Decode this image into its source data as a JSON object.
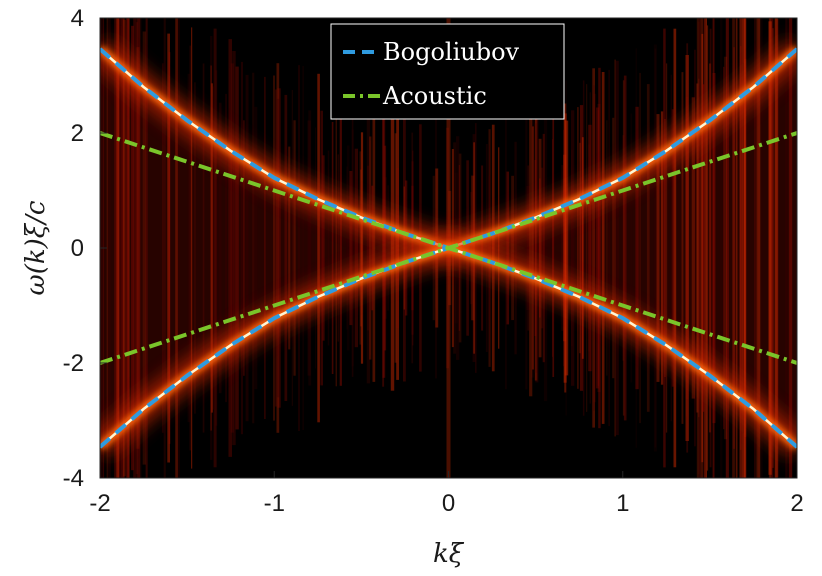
{
  "chart_data": {
    "type": "heatmap",
    "title": "",
    "xlabel": "kξ",
    "ylabel": "ω(k)ξ/c",
    "xlim": [
      -2,
      2
    ],
    "ylim": [
      -4,
      4
    ],
    "xticks": [
      -2,
      -1,
      0,
      1,
      2
    ],
    "yticks": [
      -4,
      -2,
      0,
      2,
      4
    ],
    "xtick_labels": [
      "-2",
      "-1",
      "0",
      "1",
      "2"
    ],
    "ytick_labels": [
      "-4",
      "-2",
      "0",
      "2",
      "4"
    ],
    "legend_position": "top-center",
    "colormap": [
      "#000000",
      "#3a0000",
      "#8b0a00",
      "#d42a00",
      "#ff6a10",
      "#ffd24a",
      "#ffffe0"
    ],
    "series": [
      {
        "name": "Bogoliubov",
        "style": "dashed",
        "color": "#2f9be0",
        "description_formula": "omega = |k| * sqrt(1 + k^2 / 2)",
        "x": [
          -2,
          -1.75,
          -1.5,
          -1.25,
          -1,
          -0.75,
          -0.5,
          -0.25,
          0,
          0.25,
          0.5,
          0.75,
          1,
          1.25,
          1.5,
          1.75,
          2
        ],
        "y_upper": [
          3.46,
          2.8,
          2.22,
          1.69,
          1.22,
          0.85,
          0.53,
          0.25,
          0,
          0.25,
          0.53,
          0.85,
          1.22,
          1.69,
          2.22,
          2.8,
          3.46
        ],
        "y_lower": [
          -3.46,
          -2.8,
          -2.22,
          -1.69,
          -1.22,
          -0.85,
          -0.53,
          -0.25,
          0,
          -0.25,
          -0.53,
          -0.85,
          -1.22,
          -1.69,
          -2.22,
          -2.8,
          -3.46
        ]
      },
      {
        "name": "Acoustic",
        "style": "dash-dot",
        "color": "#7ac52a",
        "x": [
          -2,
          -1,
          0,
          1,
          2
        ],
        "y_upper": [
          2,
          1,
          0,
          1,
          2
        ],
        "y_lower": [
          -2,
          -1,
          0,
          -1,
          -2
        ]
      }
    ]
  }
}
